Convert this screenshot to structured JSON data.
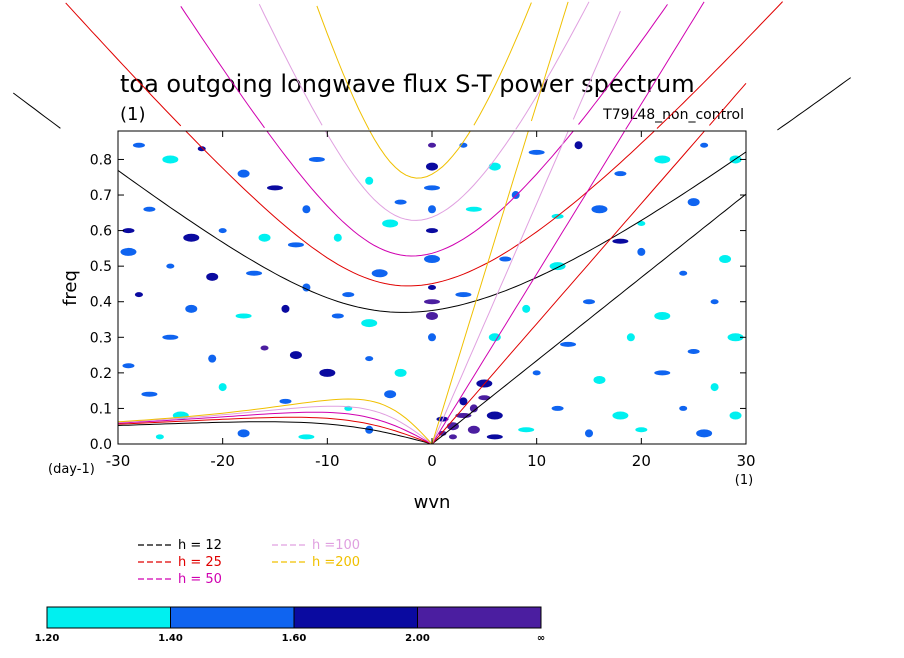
{
  "chart_data": {
    "type": "heatmap",
    "title": "toa outgoing longwave flux S-T power spectrum",
    "subtitle_left": "(1)",
    "subtitle_right": "T79L48_non_control",
    "xlabel": "wvn",
    "ylabel": "freq",
    "x_units": "(1)",
    "y_units": "(day-1)",
    "xlim": [
      -30,
      30
    ],
    "ylim": [
      0.0,
      0.88
    ],
    "x_ticks": [
      -30,
      -20,
      -10,
      0,
      10,
      20,
      30
    ],
    "x_tick_labels": [
      "-30",
      "-20",
      "-10",
      "0",
      "10",
      "20",
      "30"
    ],
    "y_ticks": [
      0.0,
      0.1,
      0.2,
      0.3,
      0.4,
      0.5,
      0.6,
      0.7,
      0.8
    ],
    "y_tick_labels": [
      "0.0",
      "0.1",
      "0.2",
      "0.3",
      "0.4",
      "0.5",
      "0.6",
      "0.7",
      "0.8"
    ],
    "levels": [
      "1.20",
      "1.40",
      "1.60",
      "2.00",
      "∞"
    ],
    "level_colors": [
      "#00f0f0",
      "#0f64f0",
      "#0a0aa0",
      "#4b1ea0"
    ],
    "dispersion_curves": [
      {
        "h": 12,
        "label": "h = 12",
        "color": "#000000"
      },
      {
        "h": 25,
        "label": "h = 25",
        "color": "#e00000"
      },
      {
        "h": 50,
        "label": "h = 50",
        "color": "#d000b0"
      },
      {
        "h": 100,
        "label": "h =100",
        "color": "#e0a0e0"
      },
      {
        "h": 200,
        "label": "h =200",
        "color": "#f0c000"
      }
    ],
    "spectral_blobs": [
      {
        "wvn": 1,
        "freq": 0.03,
        "level": 3
      },
      {
        "wvn": 2,
        "freq": 0.05,
        "level": 3
      },
      {
        "wvn": 3,
        "freq": 0.08,
        "level": 3
      },
      {
        "wvn": 4,
        "freq": 0.1,
        "level": 3
      },
      {
        "wvn": 5,
        "freq": 0.13,
        "level": 3
      },
      {
        "wvn": 5,
        "freq": 0.17,
        "level": 2
      },
      {
        "wvn": 2,
        "freq": 0.02,
        "level": 3
      },
      {
        "wvn": 4,
        "freq": 0.04,
        "level": 3
      },
      {
        "wvn": 6,
        "freq": 0.02,
        "level": 2
      },
      {
        "wvn": 3,
        "freq": 0.12,
        "level": 2
      },
      {
        "wvn": 1,
        "freq": 0.07,
        "level": 2
      },
      {
        "wvn": 6,
        "freq": 0.08,
        "level": 2
      },
      {
        "wvn": 0,
        "freq": 0.84,
        "level": 3
      },
      {
        "wvn": 0,
        "freq": 0.78,
        "level": 2
      },
      {
        "wvn": 0,
        "freq": 0.72,
        "level": 1
      },
      {
        "wvn": 0,
        "freq": 0.66,
        "level": 1
      },
      {
        "wvn": 0,
        "freq": 0.6,
        "level": 2
      },
      {
        "wvn": 0,
        "freq": 0.52,
        "level": 1
      },
      {
        "wvn": 0,
        "freq": 0.44,
        "level": 2
      },
      {
        "wvn": 0,
        "freq": 0.36,
        "level": 3
      },
      {
        "wvn": 0,
        "freq": 0.4,
        "level": 3
      },
      {
        "wvn": 0,
        "freq": 0.3,
        "level": 1
      },
      {
        "wvn": -28,
        "freq": 0.84,
        "level": 1
      },
      {
        "wvn": -25,
        "freq": 0.8,
        "level": 0
      },
      {
        "wvn": -22,
        "freq": 0.83,
        "level": 2
      },
      {
        "wvn": -18,
        "freq": 0.76,
        "level": 1
      },
      {
        "wvn": -15,
        "freq": 0.72,
        "level": 2
      },
      {
        "wvn": -12,
        "freq": 0.66,
        "level": 1
      },
      {
        "wvn": -27,
        "freq": 0.66,
        "level": 1
      },
      {
        "wvn": -23,
        "freq": 0.58,
        "level": 2
      },
      {
        "wvn": -20,
        "freq": 0.6,
        "level": 1
      },
      {
        "wvn": -16,
        "freq": 0.58,
        "level": 0
      },
      {
        "wvn": -13,
        "freq": 0.56,
        "level": 1
      },
      {
        "wvn": -9,
        "freq": 0.58,
        "level": 0
      },
      {
        "wvn": -29,
        "freq": 0.6,
        "level": 2
      },
      {
        "wvn": -29,
        "freq": 0.54,
        "level": 1
      },
      {
        "wvn": -25,
        "freq": 0.5,
        "level": 1
      },
      {
        "wvn": -21,
        "freq": 0.47,
        "level": 2
      },
      {
        "wvn": -17,
        "freq": 0.48,
        "level": 1
      },
      {
        "wvn": -12,
        "freq": 0.44,
        "level": 1
      },
      {
        "wvn": -8,
        "freq": 0.42,
        "level": 1
      },
      {
        "wvn": -5,
        "freq": 0.48,
        "level": 1
      },
      {
        "wvn": -28,
        "freq": 0.42,
        "level": 2
      },
      {
        "wvn": -23,
        "freq": 0.38,
        "level": 1
      },
      {
        "wvn": -18,
        "freq": 0.36,
        "level": 0
      },
      {
        "wvn": -14,
        "freq": 0.38,
        "level": 2
      },
      {
        "wvn": -9,
        "freq": 0.36,
        "level": 1
      },
      {
        "wvn": -6,
        "freq": 0.34,
        "level": 0
      },
      {
        "wvn": -16,
        "freq": 0.27,
        "level": 3
      },
      {
        "wvn": -13,
        "freq": 0.25,
        "level": 2
      },
      {
        "wvn": -25,
        "freq": 0.3,
        "level": 1
      },
      {
        "wvn": -21,
        "freq": 0.24,
        "level": 1
      },
      {
        "wvn": -29,
        "freq": 0.22,
        "level": 1
      },
      {
        "wvn": -10,
        "freq": 0.2,
        "level": 2
      },
      {
        "wvn": -6,
        "freq": 0.24,
        "level": 1
      },
      {
        "wvn": -3,
        "freq": 0.2,
        "level": 0
      },
      {
        "wvn": -27,
        "freq": 0.14,
        "level": 1
      },
      {
        "wvn": -20,
        "freq": 0.16,
        "level": 0
      },
      {
        "wvn": -14,
        "freq": 0.12,
        "level": 1
      },
      {
        "wvn": -24,
        "freq": 0.08,
        "level": 0
      },
      {
        "wvn": -8,
        "freq": 0.1,
        "level": 0
      },
      {
        "wvn": -4,
        "freq": 0.14,
        "level": 1
      },
      {
        "wvn": -11,
        "freq": 0.8,
        "level": 1
      },
      {
        "wvn": -6,
        "freq": 0.74,
        "level": 0
      },
      {
        "wvn": -3,
        "freq": 0.68,
        "level": 1
      },
      {
        "wvn": -4,
        "freq": 0.62,
        "level": 0
      },
      {
        "wvn": 3,
        "freq": 0.84,
        "level": 1
      },
      {
        "wvn": 6,
        "freq": 0.78,
        "level": 0
      },
      {
        "wvn": 10,
        "freq": 0.82,
        "level": 1
      },
      {
        "wvn": 14,
        "freq": 0.84,
        "level": 2
      },
      {
        "wvn": 18,
        "freq": 0.76,
        "level": 1
      },
      {
        "wvn": 22,
        "freq": 0.8,
        "level": 0
      },
      {
        "wvn": 26,
        "freq": 0.84,
        "level": 1
      },
      {
        "wvn": 29,
        "freq": 0.8,
        "level": 0
      },
      {
        "wvn": 4,
        "freq": 0.66,
        "level": 0
      },
      {
        "wvn": 8,
        "freq": 0.7,
        "level": 1
      },
      {
        "wvn": 12,
        "freq": 0.64,
        "level": 0
      },
      {
        "wvn": 16,
        "freq": 0.66,
        "level": 1
      },
      {
        "wvn": 20,
        "freq": 0.62,
        "level": 0
      },
      {
        "wvn": 25,
        "freq": 0.68,
        "level": 1
      },
      {
        "wvn": 18,
        "freq": 0.57,
        "level": 2
      },
      {
        "wvn": 20,
        "freq": 0.54,
        "level": 1
      },
      {
        "wvn": 7,
        "freq": 0.52,
        "level": 1
      },
      {
        "wvn": 12,
        "freq": 0.5,
        "level": 0
      },
      {
        "wvn": 24,
        "freq": 0.48,
        "level": 1
      },
      {
        "wvn": 28,
        "freq": 0.52,
        "level": 0
      },
      {
        "wvn": 3,
        "freq": 0.42,
        "level": 1
      },
      {
        "wvn": 9,
        "freq": 0.38,
        "level": 0
      },
      {
        "wvn": 15,
        "freq": 0.4,
        "level": 1
      },
      {
        "wvn": 22,
        "freq": 0.36,
        "level": 0
      },
      {
        "wvn": 27,
        "freq": 0.4,
        "level": 1
      },
      {
        "wvn": 6,
        "freq": 0.3,
        "level": 0
      },
      {
        "wvn": 13,
        "freq": 0.28,
        "level": 1
      },
      {
        "wvn": 19,
        "freq": 0.3,
        "level": 0
      },
      {
        "wvn": 25,
        "freq": 0.26,
        "level": 1
      },
      {
        "wvn": 29,
        "freq": 0.3,
        "level": 0
      },
      {
        "wvn": 10,
        "freq": 0.2,
        "level": 1
      },
      {
        "wvn": 16,
        "freq": 0.18,
        "level": 0
      },
      {
        "wvn": 22,
        "freq": 0.2,
        "level": 1
      },
      {
        "wvn": 27,
        "freq": 0.16,
        "level": 0
      },
      {
        "wvn": 12,
        "freq": 0.1,
        "level": 1
      },
      {
        "wvn": 18,
        "freq": 0.08,
        "level": 0
      },
      {
        "wvn": 24,
        "freq": 0.1,
        "level": 1
      },
      {
        "wvn": 29,
        "freq": 0.08,
        "level": 0
      },
      {
        "wvn": 9,
        "freq": 0.04,
        "level": 0
      },
      {
        "wvn": 15,
        "freq": 0.03,
        "level": 1
      },
      {
        "wvn": 20,
        "freq": 0.04,
        "level": 0
      },
      {
        "wvn": 26,
        "freq": 0.03,
        "level": 1
      },
      {
        "wvn": -26,
        "freq": 0.02,
        "level": 0
      },
      {
        "wvn": -18,
        "freq": 0.03,
        "level": 1
      },
      {
        "wvn": -12,
        "freq": 0.02,
        "level": 0
      },
      {
        "wvn": -6,
        "freq": 0.04,
        "level": 1
      }
    ]
  }
}
